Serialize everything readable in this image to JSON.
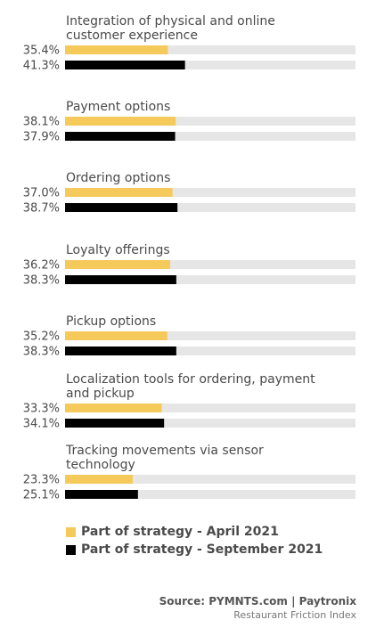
{
  "chart_data": {
    "type": "bar",
    "orientation": "horizontal",
    "xlim": [
      0,
      100
    ],
    "categories": [
      [
        "Integration of physical and online",
        "customer experience"
      ],
      [
        "Payment options"
      ],
      [
        "Ordering options"
      ],
      [
        "Loyalty offerings"
      ],
      [
        "Pickup options"
      ],
      [
        "Localization tools for ordering, payment",
        "and pickup"
      ],
      [
        "Tracking movements via sensor",
        "technology"
      ]
    ],
    "series": [
      {
        "name": "Part of strategy - April 2021",
        "color": "#f6c95b",
        "values": [
          35.4,
          38.1,
          37.0,
          36.2,
          35.2,
          33.3,
          23.3
        ],
        "labels": [
          "35.4%",
          "38.1%",
          "37.0%",
          "36.2%",
          "35.2%",
          "33.3%",
          "23.3%"
        ]
      },
      {
        "name": "Part of strategy - September 2021",
        "color": "#000000",
        "values": [
          41.3,
          37.9,
          38.7,
          38.3,
          38.3,
          34.1,
          25.1
        ],
        "labels": [
          "41.3%",
          "37.9%",
          "38.7%",
          "38.3%",
          "38.3%",
          "34.1%",
          "25.1%"
        ]
      }
    ],
    "track_color": "#e6e6e6",
    "legend_position": "bottom-left"
  },
  "source": {
    "line1": "Source: PYMNTS.com  |  Paytronix",
    "line2": "Restaurant Friction Index"
  }
}
